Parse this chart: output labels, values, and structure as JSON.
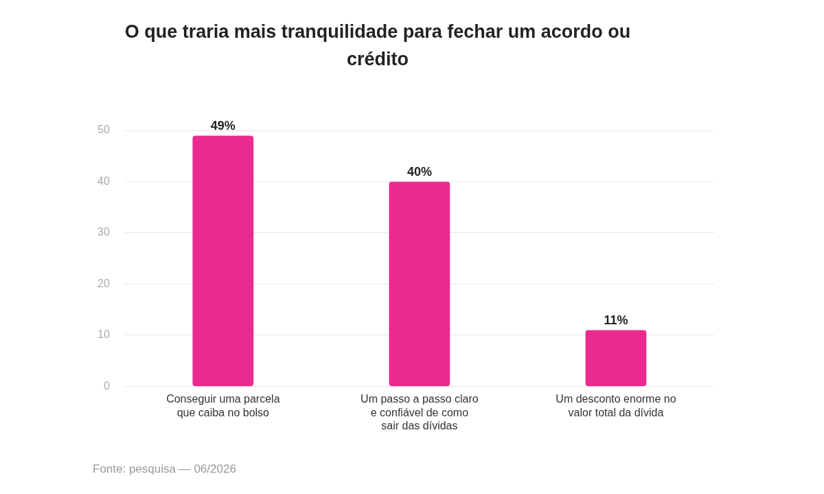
{
  "chart_data": {
    "type": "bar",
    "title": "O que traria mais tranquilidade para fechar um acordo ou crédito",
    "categories": [
      "Conseguir uma parcela que caiba no bolso",
      "Um passo a passo claro e confiável de como sair das dívidas",
      "Um desconto enorme no valor total da dívida"
    ],
    "values": [
      49,
      40,
      11
    ],
    "value_labels": [
      "49%",
      "40%",
      "11%"
    ],
    "color": "#eb2a8f",
    "ylim": [
      0,
      50
    ],
    "yticks": [
      0,
      10,
      20,
      30,
      40,
      50
    ],
    "grid": "y",
    "legend": false,
    "annotations": [
      "Fonte: pesquisa — 06/2026"
    ]
  }
}
